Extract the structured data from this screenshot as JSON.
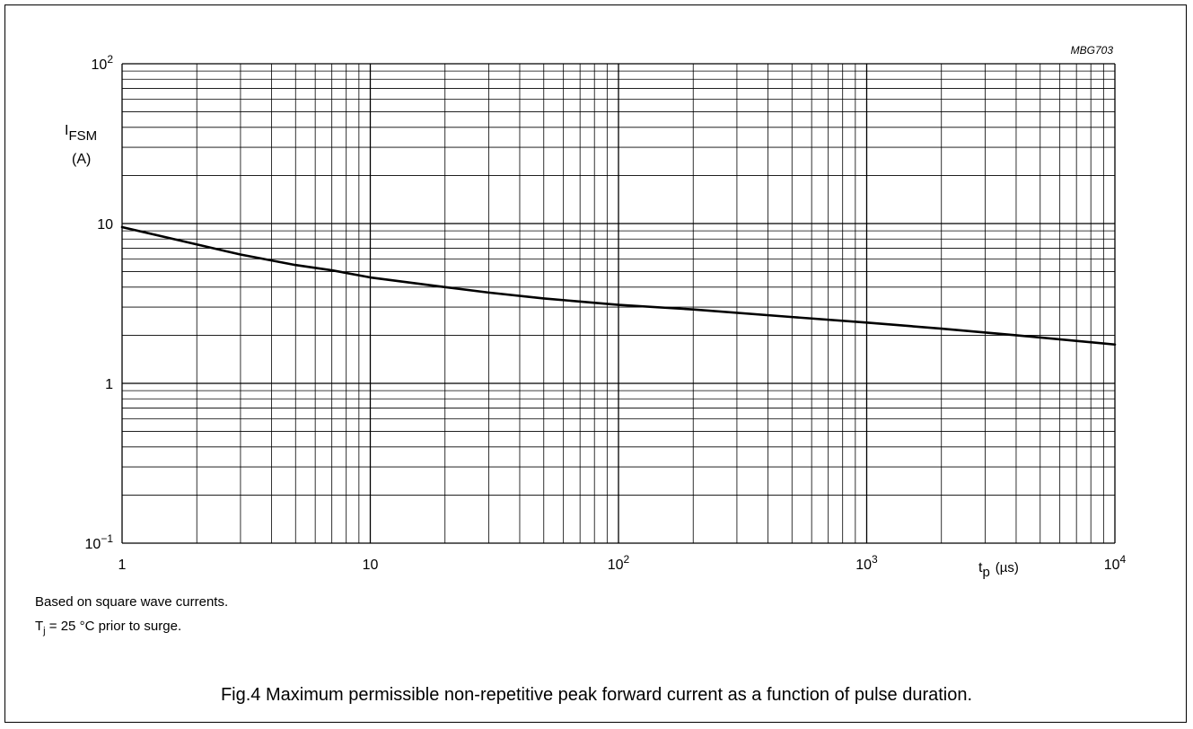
{
  "chart_data": {
    "type": "line",
    "xscale": "log",
    "yscale": "log",
    "xlim": [
      1,
      10000
    ],
    "ylim": [
      0.1,
      100
    ],
    "x_tick_labels": [
      {
        "base": "1",
        "exp": ""
      },
      {
        "base": "10",
        "exp": ""
      },
      {
        "base": "10",
        "exp": "2"
      },
      {
        "base": "10",
        "exp": "3"
      },
      {
        "base": "10",
        "exp": "4"
      }
    ],
    "y_tick_labels": [
      {
        "base": "10",
        "exp": "−1"
      },
      {
        "base": "1",
        "exp": ""
      },
      {
        "base": "10",
        "exp": ""
      },
      {
        "base": "10",
        "exp": "2"
      }
    ],
    "ylabel": {
      "main": "I",
      "sub": "FSM",
      "unit": "(A)"
    },
    "xlabel": {
      "main": "t",
      "sub": "p",
      "unit": "(µs)"
    },
    "grid": true,
    "code": "MBG703",
    "series": [
      {
        "x": [
          1,
          2,
          3,
          5,
          7,
          10,
          20,
          30,
          50,
          100,
          200,
          500,
          1000,
          2000,
          4000,
          10000
        ],
        "y": [
          9.5,
          7.4,
          6.4,
          5.5,
          5.1,
          4.6,
          4.0,
          3.7,
          3.4,
          3.1,
          2.9,
          2.6,
          2.4,
          2.2,
          2.0,
          1.75
        ]
      }
    ]
  },
  "notes": {
    "line1": "Based on square wave currents.",
    "line2_prefix": "T",
    "line2_sub": "j",
    "line2_rest": " = 25 °C prior to surge."
  },
  "caption": "Fig.4  Maximum permissible non-repetitive peak forward current as a function of pulse duration."
}
